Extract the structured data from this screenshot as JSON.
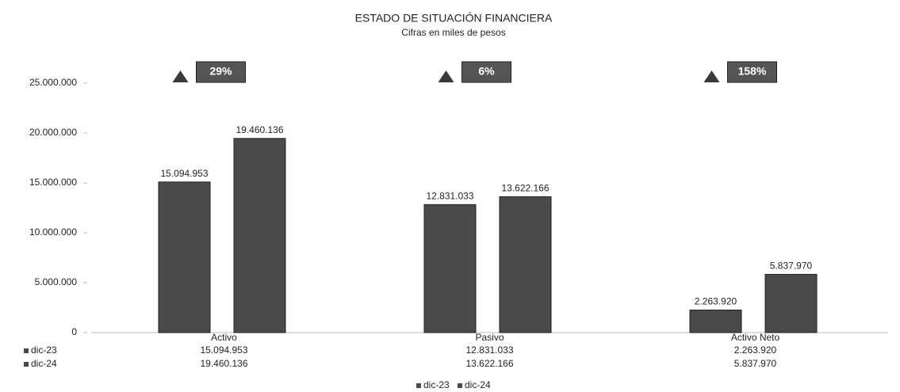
{
  "chart_data": {
    "type": "bar",
    "title": "ESTADO DE SITUACIÓN FINANCIERA",
    "subtitle": "Cifras en miles de pesos",
    "categories": [
      "Activo",
      "Pasivo",
      "Activo Neto"
    ],
    "series": [
      {
        "name": "dic-23",
        "color": "#4a4a4a",
        "values": [
          15094953,
          12831033,
          2263920
        ],
        "value_labels": [
          "15.094.953",
          "12.831.033",
          "2.263.920"
        ]
      },
      {
        "name": "dic-24",
        "color": "#4a4a4a",
        "values": [
          19460136,
          13622166,
          5837970
        ],
        "value_labels": [
          "19.460.136",
          "13.622.166",
          "5.837.970"
        ]
      }
    ],
    "annotations": [
      "29%",
      "6%",
      "158%"
    ],
    "ylim": [
      0,
      25000000
    ],
    "yticks": [
      0,
      {
        "value": 5000000,
        "label": "5.000.000"
      },
      {
        "value": 10000000,
        "label": "10.000.000"
      },
      {
        "value": 15000000,
        "label": "15.000.000"
      },
      {
        "value": 20000000,
        "label": "20.000.000"
      },
      {
        "value": 25000000,
        "label": "25.000.000"
      }
    ],
    "grid": false,
    "legend": "bottom"
  }
}
